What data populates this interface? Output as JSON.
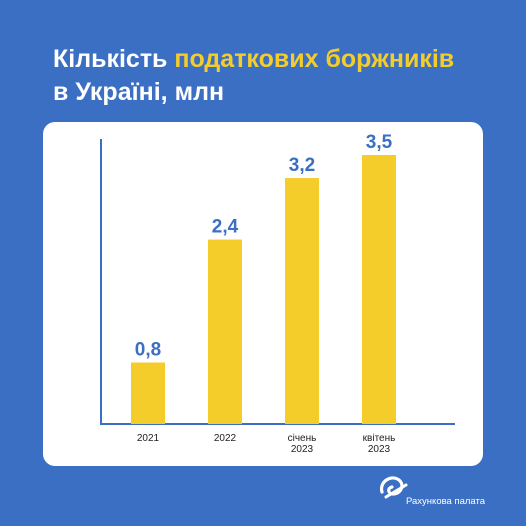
{
  "title": {
    "part1": "Кількість ",
    "highlight": "податкових боржників",
    "part2": "в Україні, млн"
  },
  "colors": {
    "background": "#3a6fc4",
    "highlight": "#f5cd2a",
    "bar": "#f5cd2a",
    "value_label": "#3a6fc4",
    "axis": "#3a6fc4"
  },
  "chart_data": {
    "type": "bar",
    "categories": [
      [
        "2021"
      ],
      [
        "2022"
      ],
      [
        "січень",
        "2023"
      ],
      [
        "квітень",
        "2023"
      ]
    ],
    "values": [
      0.8,
      2.4,
      3.2,
      3.5
    ],
    "value_labels": [
      "0,8",
      "2,4",
      "3,2",
      "3,5"
    ],
    "ylim": [
      0,
      3.5
    ],
    "grid": false
  },
  "footer": {
    "org_name": "Рахункова палата",
    "logo_icon": "accounting-chamber-logo-icon"
  }
}
